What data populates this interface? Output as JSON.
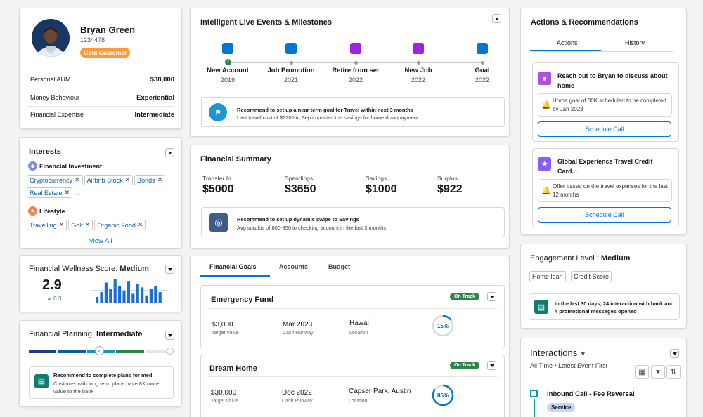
{
  "profile": {
    "name": "Bryan Green",
    "id": "1234478",
    "badge": "Gold Customer",
    "rows": [
      {
        "label": "Personal AUM",
        "value": "$38,000"
      },
      {
        "label": "Money Behaviour",
        "value": "Experiential"
      },
      {
        "label": "Financial Expertise",
        "value": "Intermediate"
      }
    ]
  },
  "interests": {
    "title": "Interests",
    "group1": "Financial Investment",
    "group1_tags": [
      "Cryptocurrency",
      "Airbnb Stock",
      "Bonds",
      "Real Estate"
    ],
    "more": "...",
    "group2": "Lifestyle",
    "group2_tags": [
      "Travelling",
      "Golf",
      "Organic Food"
    ],
    "view_all": "View All"
  },
  "wellness": {
    "label": "Financial Wellness Score: ",
    "level": "Medium",
    "score": "2.9",
    "delta": "▲ 0.3",
    "bars": [
      8,
      14,
      26,
      18,
      30,
      22,
      16,
      28,
      12,
      24,
      20,
      10,
      18,
      22,
      14
    ]
  },
  "planning": {
    "label": "Financial Planning: ",
    "level": "Intermediate",
    "rec_title": "Recommend to complete plans for med",
    "rec_body": "Customer with long term plans have 8X more value to the bank"
  },
  "events": {
    "title": "Intelligent Live Events & Milestones",
    "milestones": [
      {
        "label": "New Account",
        "year": "2019",
        "color": "#0176d3"
      },
      {
        "label": "Job Promotion",
        "year": "2021",
        "color": "#0176d3"
      },
      {
        "label": "Retire from ser",
        "year": "2022",
        "color": "#9b24de"
      },
      {
        "label": "New Job",
        "year": "2022",
        "color": "#9b24de"
      },
      {
        "label": "Goal",
        "year": "2022",
        "color": "#0176d3"
      }
    ],
    "rec_title": "Recommend to set up a near term goal for Travel within next 3 months",
    "rec_body": "Last travel cost of $2200 in Sep impacted the savings for home downpayment"
  },
  "summary": {
    "title": "Financial Summary",
    "stats": [
      {
        "label": "Transfer In",
        "value": "$5000"
      },
      {
        "label": "Spendings",
        "value": "$3650"
      },
      {
        "label": "Savings",
        "value": "$1000"
      },
      {
        "label": "Surplus",
        "value": "$922"
      }
    ],
    "rec_title": "Recommend to set up dynamic swipe to Savings",
    "rec_body": "Avg surplus of 800-950 in checking account in the last 3 months"
  },
  "goals": {
    "tabs": [
      "Financial Goals",
      "Accounts",
      "Budget"
    ],
    "items": [
      {
        "name": "Emergency Fund",
        "status": "On Track",
        "target": "$3,000",
        "target_label": "Target Value",
        "runway": "Mar 2023",
        "runway_label": "Cash Runway",
        "location": "Hawai",
        "location_label": "Location",
        "progress": 15,
        "progress_text": "15%"
      },
      {
        "name": "Dream Home",
        "status": "On Track",
        "target": "$30,000",
        "target_label": "Target Value",
        "runway": "Dec 2022",
        "runway_label": "Cash Runway",
        "location": "Capser Park, Austin",
        "location_label": "Location",
        "progress": 85,
        "progress_text": "85%"
      }
    ]
  },
  "actions": {
    "title": "Actions & Recommendations",
    "tabs": [
      "Actions",
      "History"
    ],
    "cards": [
      {
        "title": "Reach out to Bryan to discuss about home",
        "detail": "Home goal of 30K scheduled to be completed by Jan 2023",
        "button": "Schedule Call",
        "icon_color": "#b050d8"
      },
      {
        "title": "Global Experience Travel Credit Card...",
        "detail": "Offer based on the travel expenses for the last 12 months",
        "button": "Schedule Call",
        "icon_color": "#8b5cf6"
      }
    ]
  },
  "engagement": {
    "label": "Engagement Level : ",
    "level": "Medium",
    "tags": [
      "Home loan",
      "Credit Score"
    ],
    "info": "In the last 30 days, 24 interaction with bank and 4 promotional messages opened"
  },
  "interactions": {
    "title": "Interactions",
    "filter": "All Time • Latest Event First",
    "item_title": "Inbound Call - Fee Reversal",
    "item_badge": "Service"
  },
  "colors": {
    "accent": "#0176d3",
    "ontrack": "#2e844a",
    "orange": "#ff9a3c"
  }
}
